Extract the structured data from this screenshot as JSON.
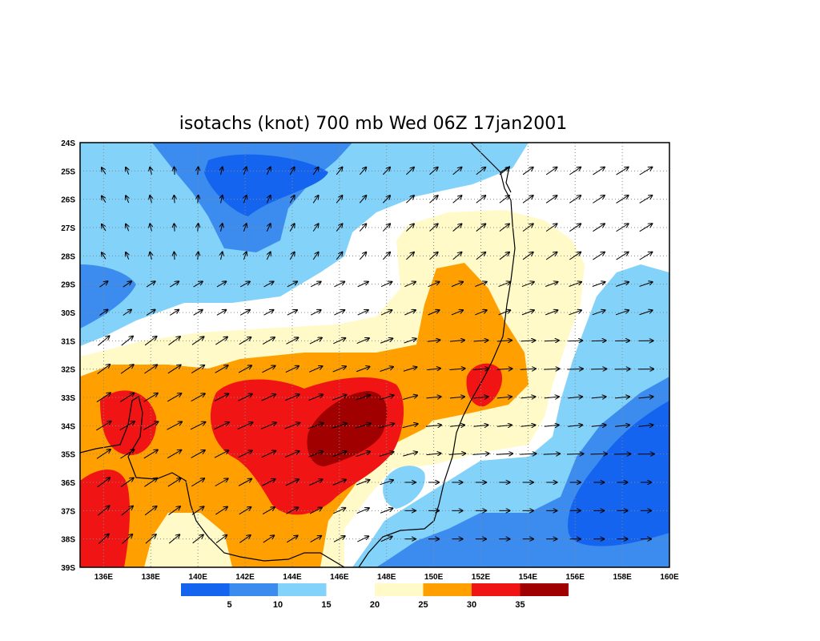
{
  "chart_data": {
    "type": "heatmap",
    "title": "isotachs (knot) 700 mb Wed 06Z 17jan2001",
    "variable": "wind speed isotachs with wind vectors",
    "units": "knot",
    "level": "700 mb",
    "valid_time": "Wed 06Z 17jan2001",
    "xlim": [
      135,
      160
    ],
    "ylim": [
      -39,
      -24
    ],
    "x_ticks": [
      "136E",
      "138E",
      "140E",
      "142E",
      "144E",
      "146E",
      "148E",
      "150E",
      "152E",
      "154E",
      "156E",
      "158E",
      "160E"
    ],
    "y_ticks": [
      "24S",
      "25S",
      "26S",
      "27S",
      "28S",
      "29S",
      "30S",
      "31S",
      "32S",
      "33S",
      "34S",
      "35S",
      "36S",
      "37S",
      "38S",
      "39S"
    ],
    "grid": true,
    "colorbar": {
      "labels": [
        "5",
        "10",
        "15",
        "20",
        "25",
        "30",
        "35"
      ],
      "colors": [
        "#1464f0",
        "#3c8cf0",
        "#82d2fa",
        "#ffffff",
        "#fffac8",
        "#ffa000",
        "#f01414",
        "#a00000"
      ]
    },
    "features": [
      {
        "name": "max core",
        "center_lon": 146.8,
        "center_lat": -34.2,
        "range": "35+ knot"
      },
      {
        "name": "max core secondary",
        "center_lon": 152.2,
        "center_lat": -32.6,
        "range": "30-35 knot"
      },
      {
        "name": "max core west",
        "center_lon": 137.0,
        "center_lat": -34.0,
        "range": "30-35 knot"
      },
      {
        "name": "minimum",
        "center_lon": 143.0,
        "center_lat": -25.5,
        "range": "<5 knot"
      },
      {
        "name": "minimum southeast",
        "center_lon": 158.5,
        "center_lat": -36.5,
        "range": "<5 knot"
      }
    ]
  }
}
